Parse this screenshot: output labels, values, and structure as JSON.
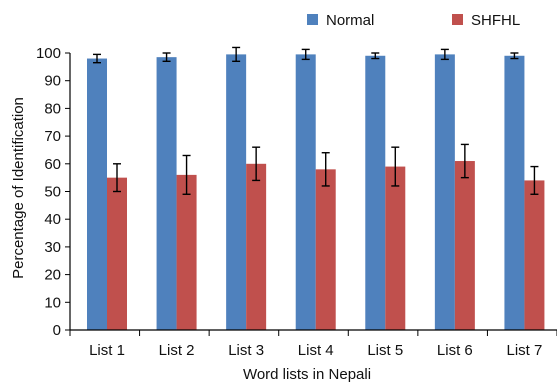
{
  "chart_data": {
    "type": "bar",
    "title": "",
    "xlabel": "Word lists in  Nepali",
    "ylabel": "Percentage of Identification",
    "ylim": [
      0,
      100
    ],
    "yticks": [
      0,
      10,
      20,
      30,
      40,
      50,
      60,
      70,
      80,
      90,
      100
    ],
    "grid": false,
    "legend_position": "top-right",
    "categories": [
      "List 1",
      "List 2",
      "List 3",
      "List 4",
      "List 5",
      "List 6",
      "List 7"
    ],
    "series": [
      {
        "name": "Normal",
        "color": "#4f81bd",
        "values": [
          98,
          98.5,
          99.5,
          99.5,
          99,
          99.5,
          99
        ],
        "errors": [
          1.5,
          1.5,
          2.5,
          1.8,
          1.0,
          1.8,
          1.0
        ]
      },
      {
        "name": "SHFHL",
        "color": "#c0504d",
        "values": [
          55,
          56,
          60,
          58,
          59,
          61,
          54
        ],
        "errors": [
          5,
          7,
          6,
          6,
          7,
          6,
          5
        ]
      }
    ]
  }
}
